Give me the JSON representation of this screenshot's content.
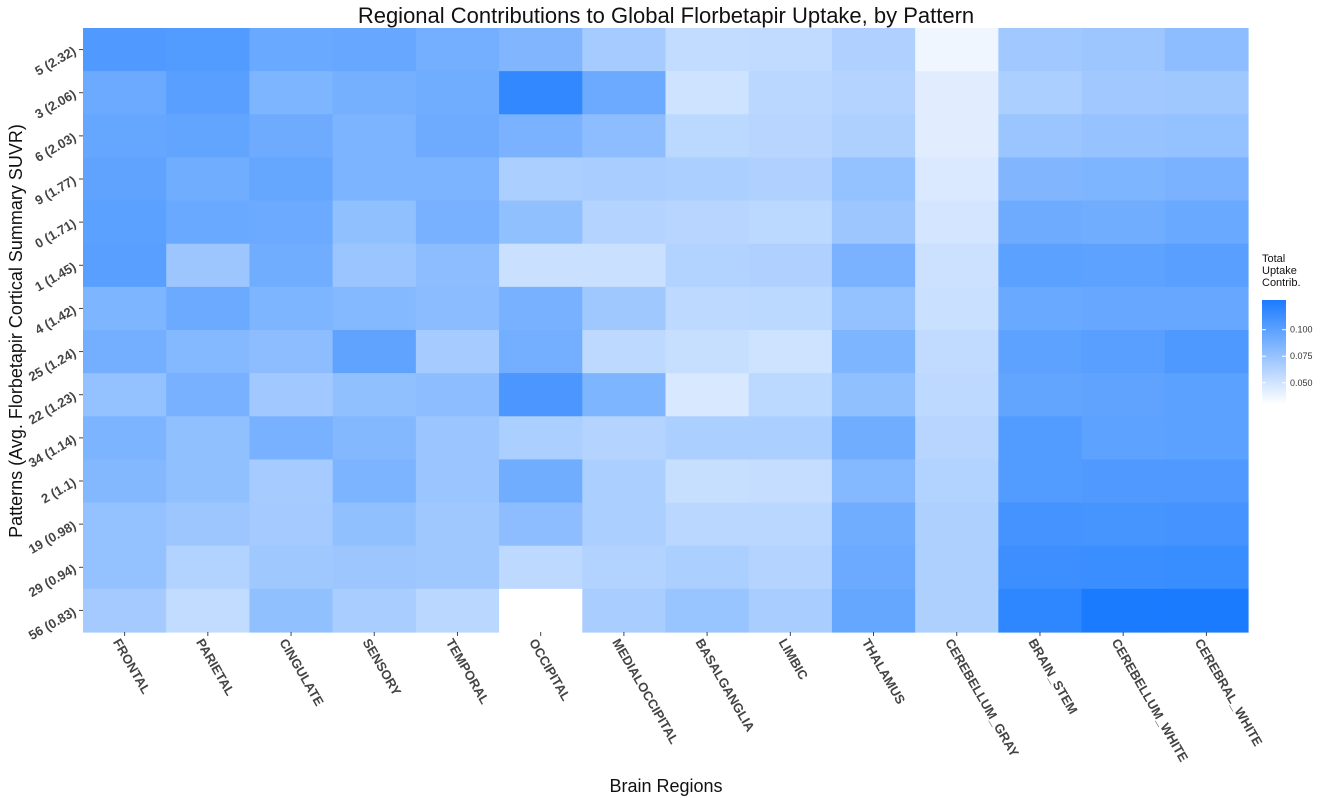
{
  "chart_data": {
    "type": "heatmap",
    "title": "Regional Contributions to Global Florbetapir Uptake, by Pattern",
    "xlabel": "Brain Regions",
    "ylabel": "Patterns (Avg. Florbetapir Cortical Summary SUVR)",
    "x_categories": [
      "FRONTAL",
      "PARIETAL",
      "CINGULATE",
      "SENSORY",
      "TEMPORAL",
      "OCCIPITAL",
      "MEDIALOCCIPITAL",
      "BASALGANGLIA",
      "LIMBIC",
      "THALAMUS",
      "CEREBELLUM_GRAY",
      "BRAIN_STEM",
      "CEREBELLUM_WHITE",
      "CEREBRAL_WHITE"
    ],
    "y_categories": [
      "5 (2.32)",
      "3 (2.06)",
      "6 (2.03)",
      "9 (1.77)",
      "0 (1.71)",
      "1 (1.45)",
      "4 (1.42)",
      "25 (1.24)",
      "22 (1.23)",
      "34 (1.14)",
      "2 (1.1)",
      "19 (0.98)",
      "29 (0.94)",
      "56 (0.83)"
    ],
    "values": [
      [
        0.105,
        0.104,
        0.094,
        0.095,
        0.09,
        0.084,
        0.068,
        0.056,
        0.057,
        0.064,
        0.037,
        0.07,
        0.072,
        0.079
      ],
      [
        0.093,
        0.101,
        0.085,
        0.089,
        0.091,
        0.118,
        0.093,
        0.051,
        0.06,
        0.062,
        0.043,
        0.066,
        0.07,
        0.071
      ],
      [
        0.096,
        0.097,
        0.092,
        0.086,
        0.092,
        0.087,
        0.079,
        0.059,
        0.061,
        0.065,
        0.043,
        0.073,
        0.075,
        0.076
      ],
      [
        0.098,
        0.091,
        0.096,
        0.086,
        0.086,
        0.066,
        0.067,
        0.066,
        0.064,
        0.076,
        0.046,
        0.084,
        0.085,
        0.087
      ],
      [
        0.1,
        0.094,
        0.093,
        0.077,
        0.088,
        0.077,
        0.062,
        0.061,
        0.059,
        0.072,
        0.049,
        0.092,
        0.091,
        0.094
      ],
      [
        0.101,
        0.072,
        0.091,
        0.073,
        0.079,
        0.053,
        0.053,
        0.063,
        0.064,
        0.087,
        0.052,
        0.1,
        0.099,
        0.101
      ],
      [
        0.085,
        0.093,
        0.085,
        0.082,
        0.08,
        0.088,
        0.071,
        0.058,
        0.059,
        0.076,
        0.053,
        0.094,
        0.095,
        0.095
      ],
      [
        0.09,
        0.082,
        0.079,
        0.098,
        0.068,
        0.09,
        0.058,
        0.054,
        0.051,
        0.085,
        0.057,
        0.099,
        0.101,
        0.106
      ],
      [
        0.076,
        0.088,
        0.07,
        0.077,
        0.079,
        0.107,
        0.085,
        0.047,
        0.059,
        0.077,
        0.058,
        0.097,
        0.098,
        0.1
      ],
      [
        0.086,
        0.077,
        0.088,
        0.083,
        0.073,
        0.066,
        0.062,
        0.066,
        0.066,
        0.091,
        0.061,
        0.104,
        0.099,
        0.1
      ],
      [
        0.083,
        0.077,
        0.068,
        0.086,
        0.073,
        0.091,
        0.066,
        0.054,
        0.055,
        0.082,
        0.063,
        0.104,
        0.105,
        0.105
      ],
      [
        0.076,
        0.072,
        0.069,
        0.077,
        0.071,
        0.079,
        0.066,
        0.06,
        0.06,
        0.091,
        0.065,
        0.11,
        0.109,
        0.11
      ],
      [
        0.076,
        0.063,
        0.071,
        0.072,
        0.071,
        0.058,
        0.063,
        0.066,
        0.062,
        0.093,
        0.065,
        0.113,
        0.114,
        0.115
      ],
      [
        0.069,
        0.056,
        0.077,
        0.067,
        0.06,
        0.03,
        0.067,
        0.074,
        0.067,
        0.096,
        0.065,
        0.119,
        0.128,
        0.128
      ]
    ],
    "color_low": "#ffffff",
    "color_high": "#1a7bff",
    "scale_range": [
      0.03,
      0.128
    ],
    "legend": {
      "title_lines": [
        "Total",
        "Uptake",
        "Contrib."
      ],
      "ticks": [
        0.05,
        0.075,
        0.1
      ],
      "tick_labels": [
        "0.050",
        "0.075",
        "0.100"
      ],
      "position": "right"
    },
    "grid": false
  }
}
